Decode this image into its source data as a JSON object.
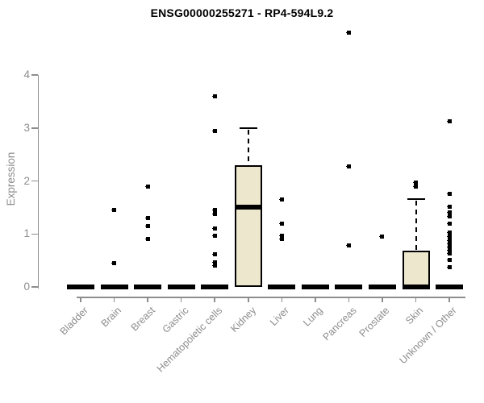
{
  "colors": {
    "box_fill": "#EDE7CE",
    "box_border": "#000000",
    "axis_gray": "#8d8d8d",
    "title_color": "#000000"
  },
  "chart_data": {
    "type": "boxplot",
    "title": "ENSG00000255271 - RP4-594L9.2",
    "ylabel": "Expression",
    "xlabel": "",
    "ylim": [
      0,
      4
    ],
    "yticks": [
      0,
      1,
      2,
      3,
      4
    ],
    "grid": false,
    "legend": "none",
    "categories": [
      "Bladder",
      "Brain",
      "Breast",
      "Gastric",
      "Hematopoietic cells",
      "Kidney",
      "Liver",
      "Lung",
      "Pancreas",
      "Prostate",
      "Skin",
      "Unknown / Other"
    ],
    "boxes": [
      {
        "category": "Bladder",
        "median": 0,
        "q1": 0,
        "q3": 0,
        "whisker_low": 0,
        "whisker_high": 0,
        "outliers": []
      },
      {
        "category": "Brain",
        "median": 0,
        "q1": 0,
        "q3": 0,
        "whisker_low": 0,
        "whisker_high": 0,
        "outliers": [
          1.45,
          0.45
        ]
      },
      {
        "category": "Breast",
        "median": 0,
        "q1": 0,
        "q3": 0,
        "whisker_low": 0,
        "whisker_high": 0,
        "outliers": [
          1.9,
          1.3,
          1.15,
          0.9
        ]
      },
      {
        "category": "Gastric",
        "median": 0,
        "q1": 0,
        "q3": 0,
        "whisker_low": 0,
        "whisker_high": 0,
        "outliers": []
      },
      {
        "category": "Hematopoietic cells",
        "median": 0,
        "q1": 0,
        "q3": 0,
        "whisker_low": 0,
        "whisker_high": 0,
        "outliers": [
          3.6,
          2.95,
          1.45,
          1.37,
          1.1,
          0.97,
          0.62,
          0.47,
          0.41
        ]
      },
      {
        "category": "Kidney",
        "median": 1.5,
        "q1": 0,
        "q3": 2.3,
        "whisker_low": 0,
        "whisker_high": 3.0,
        "outliers": []
      },
      {
        "category": "Liver",
        "median": 0,
        "q1": 0,
        "q3": 0,
        "whisker_low": 0,
        "whisker_high": 0,
        "outliers": [
          1.65,
          1.2,
          0.97,
          0.9
        ]
      },
      {
        "category": "Lung",
        "median": 0,
        "q1": 0,
        "q3": 0,
        "whisker_low": 0,
        "whisker_high": 0,
        "outliers": []
      },
      {
        "category": "Pancreas",
        "median": 0,
        "q1": 0,
        "q3": 0,
        "whisker_low": 0,
        "whisker_high": 0,
        "outliers": [
          4.8,
          2.27,
          0.78
        ]
      },
      {
        "category": "Prostate",
        "median": 0,
        "q1": 0,
        "q3": 0,
        "whisker_low": 0,
        "whisker_high": 0,
        "outliers": [
          0.95
        ]
      },
      {
        "category": "Skin",
        "median": 0,
        "q1": 0,
        "q3": 0.69,
        "whisker_low": 0,
        "whisker_high": 1.66,
        "outliers": [
          1.97,
          1.9
        ]
      },
      {
        "category": "Unknown / Other",
        "median": 0,
        "q1": 0,
        "q3": 0,
        "whisker_low": 0,
        "whisker_high": 0,
        "outliers": [
          3.13,
          1.75,
          1.52,
          1.4,
          1.33,
          1.2,
          1.02,
          0.95,
          0.88,
          0.82,
          0.75,
          0.69,
          0.63,
          0.51,
          0.38
        ]
      }
    ]
  }
}
